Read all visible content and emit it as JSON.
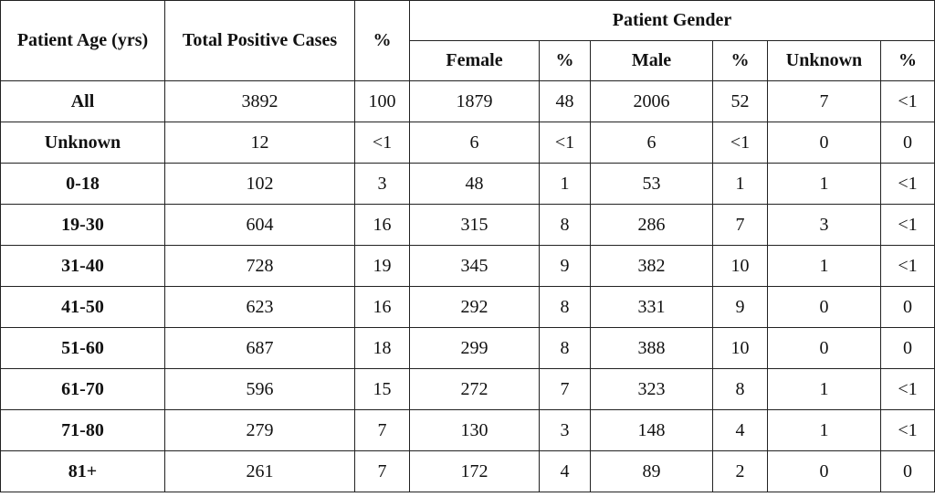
{
  "table": {
    "headers": {
      "age": "Patient Age (yrs)",
      "total": "Total Positive Cases",
      "pct": "%",
      "gender_group": "Patient Gender",
      "female": "Female",
      "female_pct": "%",
      "male": "Male",
      "male_pct": "%",
      "unknown": "Unknown",
      "unknown_pct": "%"
    },
    "rows": [
      {
        "age": "All",
        "total": "3892",
        "pct": "100",
        "female": "1879",
        "female_pct": "48",
        "male": "2006",
        "male_pct": "52",
        "unknown": "7",
        "unknown_pct": "<1"
      },
      {
        "age": "Unknown",
        "total": "12",
        "pct": "<1",
        "female": "6",
        "female_pct": "<1",
        "male": "6",
        "male_pct": "<1",
        "unknown": "0",
        "unknown_pct": "0"
      },
      {
        "age": "0-18",
        "total": "102",
        "pct": "3",
        "female": "48",
        "female_pct": "1",
        "male": "53",
        "male_pct": "1",
        "unknown": "1",
        "unknown_pct": "<1"
      },
      {
        "age": "19-30",
        "total": "604",
        "pct": "16",
        "female": "315",
        "female_pct": "8",
        "male": "286",
        "male_pct": "7",
        "unknown": "3",
        "unknown_pct": "<1"
      },
      {
        "age": "31-40",
        "total": "728",
        "pct": "19",
        "female": "345",
        "female_pct": "9",
        "male": "382",
        "male_pct": "10",
        "unknown": "1",
        "unknown_pct": "<1"
      },
      {
        "age": "41-50",
        "total": "623",
        "pct": "16",
        "female": "292",
        "female_pct": "8",
        "male": "331",
        "male_pct": "9",
        "unknown": "0",
        "unknown_pct": "0"
      },
      {
        "age": "51-60",
        "total": "687",
        "pct": "18",
        "female": "299",
        "female_pct": "8",
        "male": "388",
        "male_pct": "10",
        "unknown": "0",
        "unknown_pct": "0"
      },
      {
        "age": "61-70",
        "total": "596",
        "pct": "15",
        "female": "272",
        "female_pct": "7",
        "male": "323",
        "male_pct": "8",
        "unknown": "1",
        "unknown_pct": "<1"
      },
      {
        "age": "71-80",
        "total": "279",
        "pct": "7",
        "female": "130",
        "female_pct": "3",
        "male": "148",
        "male_pct": "4",
        "unknown": "1",
        "unknown_pct": "<1"
      },
      {
        "age": "81+",
        "total": "261",
        "pct": "7",
        "female": "172",
        "female_pct": "4",
        "male": "89",
        "male_pct": "2",
        "unknown": "0",
        "unknown_pct": "0"
      }
    ]
  }
}
